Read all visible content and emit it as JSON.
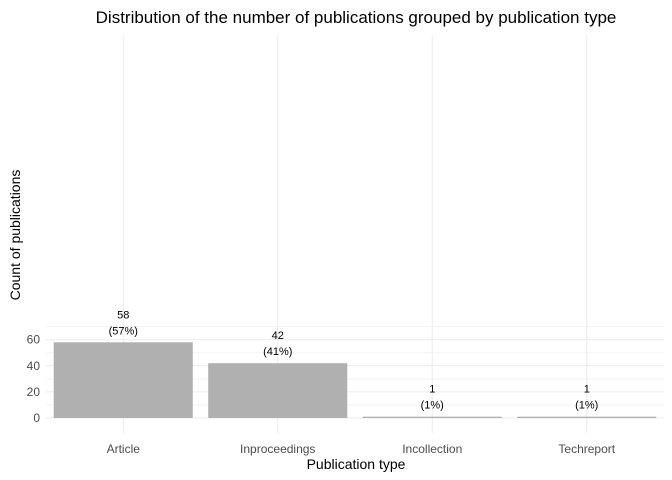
{
  "chart_data": {
    "type": "bar",
    "title": "Distribution of the number of publications grouped by publication type",
    "xlabel": "Publication type",
    "ylabel": "Count of publications",
    "categories": [
      "Article",
      "Inproceedings",
      "Incollection",
      "Techreport"
    ],
    "values": [
      58,
      42,
      1,
      1
    ],
    "percent_labels": [
      "(57%)",
      "(41%)",
      "(1%)",
      "(1%)"
    ],
    "ylim": [
      0,
      72
    ],
    "yticks": [
      0,
      20,
      40,
      60
    ],
    "ytick_labels": [
      "0",
      "20",
      "40",
      "60"
    ],
    "grid": true,
    "legend": "none",
    "bar_color": "#b0b0b0"
  }
}
